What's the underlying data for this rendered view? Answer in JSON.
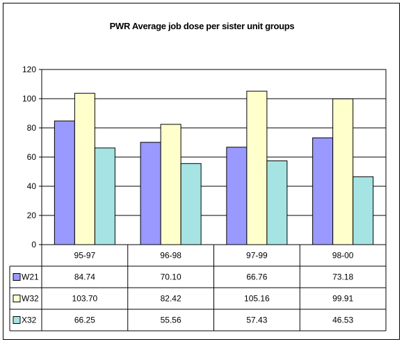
{
  "chart_data": {
    "type": "bar",
    "title": "PWR Average job dose per sister unit groups",
    "categories": [
      "95-97",
      "96-98",
      "97-99",
      "98-00"
    ],
    "ylim": [
      0,
      120
    ],
    "yticks": [
      0,
      20,
      40,
      60,
      80,
      100,
      120
    ],
    "grid": true,
    "legend": "data-table-left",
    "series": [
      {
        "name": "W21",
        "color": "#9999ff",
        "values": [
          84.74,
          70.1,
          66.76,
          73.18
        ],
        "labels": [
          "84.74",
          "70.10",
          "66.76",
          "73.18"
        ]
      },
      {
        "name": "W32",
        "color": "#ffffcc",
        "values": [
          103.7,
          82.42,
          105.16,
          99.91
        ],
        "labels": [
          "103.70",
          "82.42",
          "105.16",
          "99.91"
        ]
      },
      {
        "name": "X32",
        "color": "#a6e3e3",
        "values": [
          66.25,
          55.56,
          57.43,
          46.53
        ],
        "labels": [
          "66.25",
          "55.56",
          "57.43",
          "46.53"
        ]
      }
    ]
  }
}
